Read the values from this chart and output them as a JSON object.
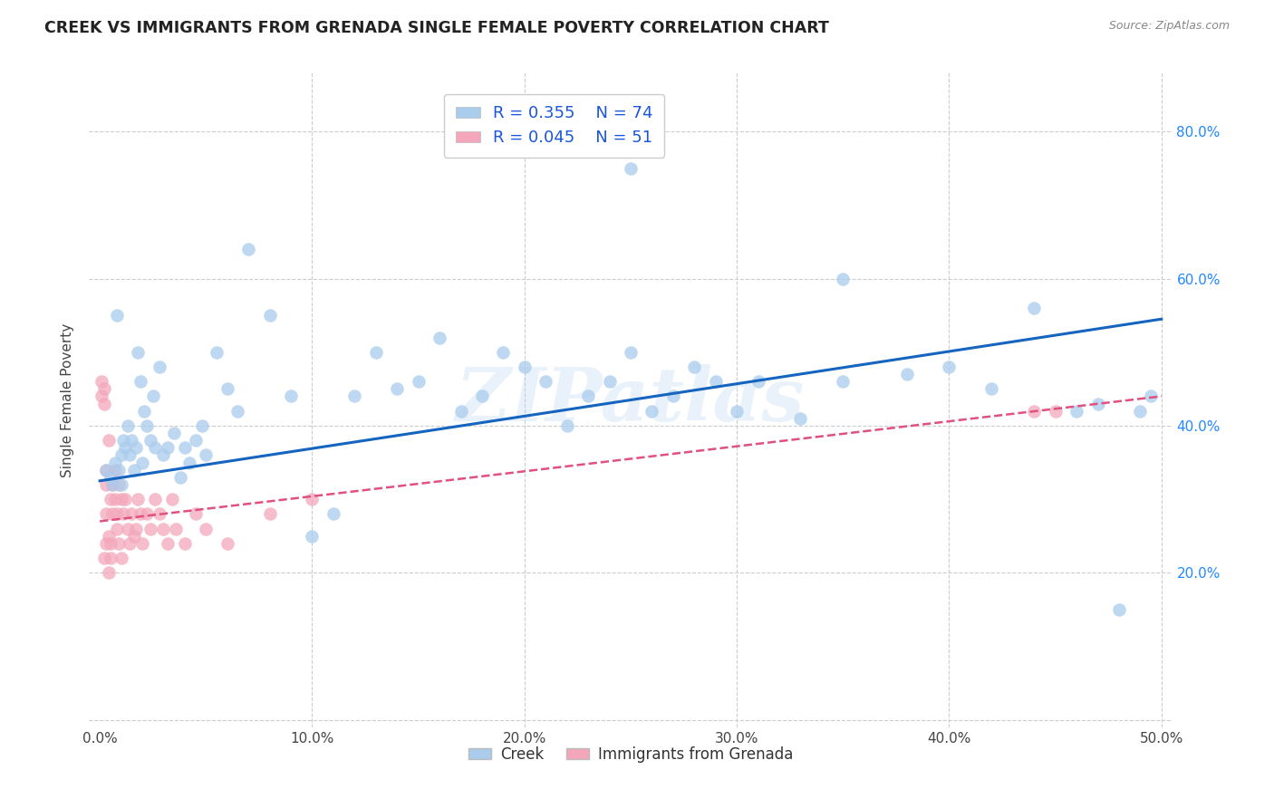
{
  "title": "CREEK VS IMMIGRANTS FROM GRENADA SINGLE FEMALE POVERTY CORRELATION CHART",
  "source": "Source: ZipAtlas.com",
  "ylabel": "Single Female Poverty",
  "x_ticks": [
    0.0,
    0.1,
    0.2,
    0.3,
    0.4,
    0.5
  ],
  "x_tick_labels": [
    "0.0%",
    "10.0%",
    "20.0%",
    "30.0%",
    "40.0%",
    "50.0%"
  ],
  "y_ticks": [
    0.0,
    0.2,
    0.4,
    0.6,
    0.8
  ],
  "y_tick_labels": [
    "",
    "20.0%",
    "40.0%",
    "60.0%",
    "80.0%"
  ],
  "xlim": [
    -0.005,
    0.505
  ],
  "ylim": [
    -0.01,
    0.88
  ],
  "creek_R": 0.355,
  "creek_N": 74,
  "grenada_R": 0.045,
  "grenada_N": 51,
  "creek_color": "#aacced",
  "creek_line_color": "#1565c0",
  "grenada_color": "#f4a7bb",
  "grenada_line_color": "#e05080",
  "legend_label_color": "#1a56db",
  "watermark": "ZIPatlas",
  "creek_x": [
    0.003,
    0.005,
    0.006,
    0.007,
    0.008,
    0.009,
    0.01,
    0.01,
    0.011,
    0.012,
    0.013,
    0.014,
    0.015,
    0.016,
    0.017,
    0.018,
    0.019,
    0.02,
    0.021,
    0.022,
    0.024,
    0.025,
    0.026,
    0.028,
    0.03,
    0.032,
    0.035,
    0.038,
    0.04,
    0.042,
    0.045,
    0.048,
    0.05,
    0.055,
    0.06,
    0.065,
    0.07,
    0.08,
    0.09,
    0.1,
    0.11,
    0.12,
    0.13,
    0.14,
    0.15,
    0.16,
    0.17,
    0.18,
    0.19,
    0.2,
    0.21,
    0.22,
    0.23,
    0.24,
    0.25,
    0.26,
    0.27,
    0.28,
    0.29,
    0.3,
    0.31,
    0.33,
    0.35,
    0.38,
    0.4,
    0.42,
    0.44,
    0.46,
    0.47,
    0.48,
    0.49,
    0.495,
    0.25,
    0.35
  ],
  "creek_y": [
    0.34,
    0.33,
    0.32,
    0.35,
    0.55,
    0.34,
    0.36,
    0.32,
    0.38,
    0.37,
    0.4,
    0.36,
    0.38,
    0.34,
    0.37,
    0.5,
    0.46,
    0.35,
    0.42,
    0.4,
    0.38,
    0.44,
    0.37,
    0.48,
    0.36,
    0.37,
    0.39,
    0.33,
    0.37,
    0.35,
    0.38,
    0.4,
    0.36,
    0.5,
    0.45,
    0.42,
    0.64,
    0.55,
    0.44,
    0.25,
    0.28,
    0.44,
    0.5,
    0.45,
    0.46,
    0.52,
    0.42,
    0.44,
    0.5,
    0.48,
    0.46,
    0.4,
    0.44,
    0.46,
    0.5,
    0.42,
    0.44,
    0.48,
    0.46,
    0.42,
    0.46,
    0.41,
    0.46,
    0.47,
    0.48,
    0.45,
    0.56,
    0.42,
    0.43,
    0.15,
    0.42,
    0.44,
    0.75,
    0.6
  ],
  "grenada_x": [
    0.001,
    0.001,
    0.002,
    0.002,
    0.002,
    0.003,
    0.003,
    0.003,
    0.004,
    0.004,
    0.004,
    0.005,
    0.005,
    0.005,
    0.006,
    0.006,
    0.007,
    0.007,
    0.008,
    0.008,
    0.009,
    0.009,
    0.01,
    0.01,
    0.011,
    0.012,
    0.013,
    0.014,
    0.015,
    0.016,
    0.017,
    0.018,
    0.019,
    0.02,
    0.022,
    0.024,
    0.026,
    0.028,
    0.03,
    0.032,
    0.034,
    0.036,
    0.04,
    0.045,
    0.05,
    0.06,
    0.08,
    0.1,
    0.44,
    0.45,
    0.003
  ],
  "grenada_y": [
    0.46,
    0.44,
    0.45,
    0.43,
    0.22,
    0.24,
    0.28,
    0.34,
    0.38,
    0.25,
    0.2,
    0.3,
    0.24,
    0.22,
    0.32,
    0.28,
    0.34,
    0.3,
    0.26,
    0.28,
    0.32,
    0.24,
    0.3,
    0.22,
    0.28,
    0.3,
    0.26,
    0.24,
    0.28,
    0.25,
    0.26,
    0.3,
    0.28,
    0.24,
    0.28,
    0.26,
    0.3,
    0.28,
    0.26,
    0.24,
    0.3,
    0.26,
    0.24,
    0.28,
    0.26,
    0.24,
    0.28,
    0.3,
    0.42,
    0.42,
    0.32
  ]
}
